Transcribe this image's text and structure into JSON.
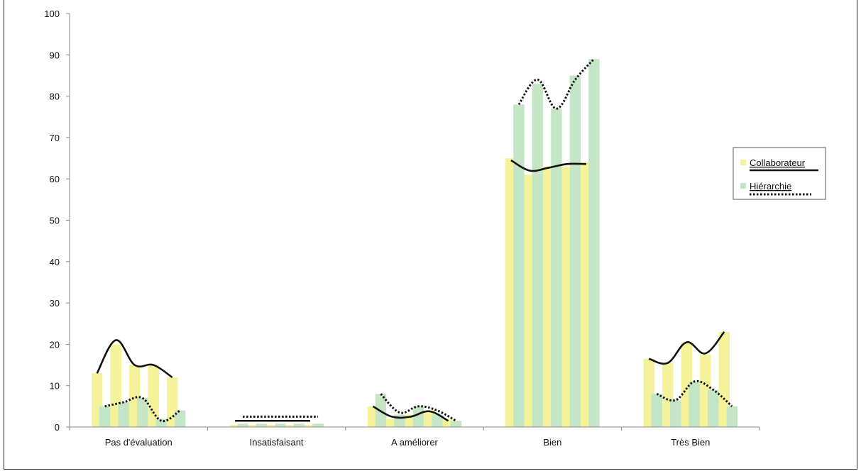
{
  "chart_data": {
    "type": "bar",
    "title": "",
    "xlabel": "",
    "ylabel": "",
    "ylim": [
      0,
      100
    ],
    "yticks": [
      0,
      10,
      20,
      30,
      40,
      50,
      60,
      70,
      80,
      90,
      100
    ],
    "categories": [
      "Pas d'évaluation",
      "Insatisfaisant",
      "A améliorer",
      "Bien",
      "Très Bien"
    ],
    "bars_per_series_per_category": 5,
    "series": [
      {
        "name": "Collaborateur",
        "color": "#f5f39a",
        "trend_style": "solid",
        "values": [
          [
            13,
            20,
            15,
            15,
            12
          ],
          [
            0.5,
            0.5,
            0.5,
            0.5,
            0.5
          ],
          [
            5,
            2,
            3,
            4,
            2
          ],
          [
            65,
            61,
            63,
            63,
            64
          ],
          [
            16.5,
            15.5,
            20.5,
            17.5,
            23
          ]
        ]
      },
      {
        "name": "Hiérarchie",
        "color": "#c4e6c6",
        "trend_style": "dotted",
        "values": [
          [
            5,
            6,
            7,
            2,
            4
          ],
          [
            0.8,
            0.8,
            0.8,
            0.8,
            0.8
          ],
          [
            8,
            3,
            5,
            3,
            1.5
          ],
          [
            78,
            83,
            77,
            85,
            89
          ],
          [
            8,
            6.5,
            11,
            9,
            5
          ]
        ]
      }
    ],
    "trend_lines": {
      "Collaborateur": [
        [
          13,
          21,
          15,
          15,
          12
        ],
        [
          1.5,
          1.5,
          1.5,
          1.5,
          1.5
        ],
        [
          5,
          2.5,
          2.5,
          3.8,
          1.5
        ],
        [
          64.5,
          62,
          62.7,
          63.6,
          63.6
        ],
        [
          16.5,
          15.5,
          20.5,
          17.8,
          23
        ]
      ],
      "Hiérarchie": [
        [
          5,
          6,
          7,
          1.5,
          4
        ],
        [
          2.5,
          2.5,
          2.5,
          2.5,
          2.5
        ],
        [
          8,
          3.5,
          5,
          4,
          1.5
        ],
        [
          78,
          84,
          77,
          84,
          89
        ],
        [
          8,
          6.5,
          11,
          9,
          5
        ]
      ]
    },
    "legend_position": "right",
    "grid": false
  }
}
